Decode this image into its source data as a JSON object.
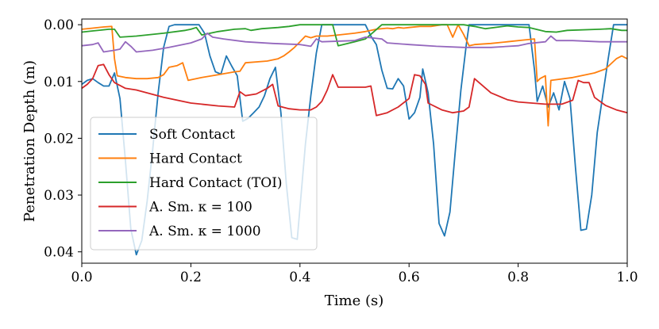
{
  "chart_data": {
    "type": "line",
    "xlabel": "Time (s)",
    "ylabel": "Penetration Depth (m)",
    "xlim": [
      0.0,
      1.0
    ],
    "ylim": [
      0.042,
      -0.001
    ],
    "y_inverted": true,
    "grid": false,
    "legend_position": "lower-left",
    "x_ticks": [
      0.0,
      0.2,
      0.4,
      0.6,
      0.8,
      1.0
    ],
    "x_tick_labels": [
      "0.0",
      "0.2",
      "0.4",
      "0.6",
      "0.8",
      "1.0"
    ],
    "y_ticks": [
      0.0,
      0.01,
      0.02,
      0.03,
      0.04
    ],
    "y_tick_labels": [
      "0.00",
      "0.01",
      "0.02",
      "0.03",
      "0.04"
    ],
    "series": [
      {
        "name": "Soft Contact",
        "color": "#1f77b4",
        "points": [
          [
            0.0,
            0.0105
          ],
          [
            0.01,
            0.0098
          ],
          [
            0.02,
            0.0095
          ],
          [
            0.03,
            0.0102
          ],
          [
            0.04,
            0.0108
          ],
          [
            0.05,
            0.0108
          ],
          [
            0.06,
            0.0085
          ],
          [
            0.07,
            0.013
          ],
          [
            0.08,
            0.024
          ],
          [
            0.09,
            0.036
          ],
          [
            0.1,
            0.0405
          ],
          [
            0.11,
            0.038
          ],
          [
            0.12,
            0.031
          ],
          [
            0.13,
            0.022
          ],
          [
            0.14,
            0.012
          ],
          [
            0.15,
            0.004
          ],
          [
            0.16,
            0.0003
          ],
          [
            0.17,
            0.0
          ],
          [
            0.2,
            0.0
          ],
          [
            0.215,
            0.0
          ],
          [
            0.225,
            0.0015
          ],
          [
            0.235,
            0.0055
          ],
          [
            0.245,
            0.0083
          ],
          [
            0.255,
            0.0087
          ],
          [
            0.265,
            0.0055
          ],
          [
            0.275,
            0.0073
          ],
          [
            0.285,
            0.009
          ],
          [
            0.295,
            0.017
          ],
          [
            0.305,
            0.0165
          ],
          [
            0.315,
            0.0155
          ],
          [
            0.325,
            0.0145
          ],
          [
            0.335,
            0.0125
          ],
          [
            0.345,
            0.0095
          ],
          [
            0.355,
            0.0075
          ],
          [
            0.365,
            0.0155
          ],
          [
            0.375,
            0.028
          ],
          [
            0.385,
            0.0375
          ],
          [
            0.395,
            0.0378
          ],
          [
            0.41,
            0.021
          ],
          [
            0.42,
            0.0125
          ],
          [
            0.43,
            0.005
          ],
          [
            0.44,
            0.0
          ],
          [
            0.52,
            0.0
          ],
          [
            0.53,
            0.002
          ],
          [
            0.54,
            0.0035
          ],
          [
            0.55,
            0.008
          ],
          [
            0.56,
            0.0112
          ],
          [
            0.57,
            0.0113
          ],
          [
            0.58,
            0.0095
          ],
          [
            0.59,
            0.0108
          ],
          [
            0.6,
            0.0166
          ],
          [
            0.61,
            0.0155
          ],
          [
            0.62,
            0.0128
          ],
          [
            0.625,
            0.0078
          ],
          [
            0.635,
            0.012
          ],
          [
            0.645,
            0.021
          ],
          [
            0.655,
            0.035
          ],
          [
            0.665,
            0.0372
          ],
          [
            0.675,
            0.033
          ],
          [
            0.685,
            0.022
          ],
          [
            0.695,
            0.0115
          ],
          [
            0.705,
            0.0035
          ],
          [
            0.71,
            0.0
          ],
          [
            0.8,
            0.0
          ],
          [
            0.82,
            0.0
          ],
          [
            0.83,
            0.008
          ],
          [
            0.835,
            0.0135
          ],
          [
            0.845,
            0.0108
          ],
          [
            0.855,
            0.0145
          ],
          [
            0.865,
            0.012
          ],
          [
            0.875,
            0.015
          ],
          [
            0.885,
            0.01
          ],
          [
            0.895,
            0.013
          ],
          [
            0.905,
            0.025
          ],
          [
            0.915,
            0.0362
          ],
          [
            0.925,
            0.036
          ],
          [
            0.935,
            0.03
          ],
          [
            0.945,
            0.019
          ],
          [
            0.955,
            0.0125
          ],
          [
            0.965,
            0.006
          ],
          [
            0.975,
            0.0
          ],
          [
            0.99,
            0.0
          ],
          [
            1.0,
            0.0
          ]
        ]
      },
      {
        "name": "Hard Contact",
        "color": "#ff7f0e",
        "points": [
          [
            0.0,
            0.0008
          ],
          [
            0.02,
            0.0006
          ],
          [
            0.04,
            0.0004
          ],
          [
            0.055,
            0.0003
          ],
          [
            0.06,
            0.006
          ],
          [
            0.065,
            0.009
          ],
          [
            0.08,
            0.0093
          ],
          [
            0.1,
            0.0095
          ],
          [
            0.12,
            0.0095
          ],
          [
            0.14,
            0.0093
          ],
          [
            0.15,
            0.0088
          ],
          [
            0.16,
            0.0075
          ],
          [
            0.175,
            0.0072
          ],
          [
            0.185,
            0.0067
          ],
          [
            0.195,
            0.0098
          ],
          [
            0.22,
            0.0093
          ],
          [
            0.25,
            0.0088
          ],
          [
            0.28,
            0.0083
          ],
          [
            0.29,
            0.0082
          ],
          [
            0.3,
            0.0067
          ],
          [
            0.34,
            0.0064
          ],
          [
            0.36,
            0.006
          ],
          [
            0.37,
            0.0055
          ],
          [
            0.38,
            0.0048
          ],
          [
            0.39,
            0.004
          ],
          [
            0.4,
            0.003
          ],
          [
            0.41,
            0.002
          ],
          [
            0.42,
            0.0023
          ],
          [
            0.43,
            0.002
          ],
          [
            0.45,
            0.002
          ],
          [
            0.47,
            0.0018
          ],
          [
            0.5,
            0.0015
          ],
          [
            0.52,
            0.0012
          ],
          [
            0.54,
            0.0008
          ],
          [
            0.56,
            0.0006
          ],
          [
            0.57,
            0.0007
          ],
          [
            0.58,
            0.0005
          ],
          [
            0.59,
            0.0006
          ],
          [
            0.6,
            0.0005
          ],
          [
            0.62,
            0.0003
          ],
          [
            0.64,
            0.0003
          ],
          [
            0.66,
            0.0
          ],
          [
            0.67,
            0.0
          ],
          [
            0.68,
            0.0022
          ],
          [
            0.69,
            0.0
          ],
          [
            0.7,
            0.0017
          ],
          [
            0.71,
            0.0037
          ],
          [
            0.72,
            0.0035
          ],
          [
            0.75,
            0.0033
          ],
          [
            0.78,
            0.003
          ],
          [
            0.81,
            0.0027
          ],
          [
            0.83,
            0.0025
          ],
          [
            0.835,
            0.01
          ],
          [
            0.84,
            0.0095
          ],
          [
            0.85,
            0.009
          ],
          [
            0.855,
            0.0178
          ],
          [
            0.86,
            0.0098
          ],
          [
            0.9,
            0.0093
          ],
          [
            0.94,
            0.0085
          ],
          [
            0.96,
            0.0078
          ],
          [
            0.98,
            0.006
          ],
          [
            0.99,
            0.0055
          ],
          [
            1.0,
            0.006
          ]
        ]
      },
      {
        "name": "Hard Contact (TOI)",
        "color": "#2ca02c",
        "points": [
          [
            0.0,
            0.0013
          ],
          [
            0.02,
            0.0011
          ],
          [
            0.05,
            0.0008
          ],
          [
            0.06,
            0.0008
          ],
          [
            0.07,
            0.0022
          ],
          [
            0.1,
            0.002
          ],
          [
            0.15,
            0.0015
          ],
          [
            0.19,
            0.001
          ],
          [
            0.2,
            0.0008
          ],
          [
            0.21,
            0.0005
          ],
          [
            0.22,
            0.0018
          ],
          [
            0.25,
            0.0012
          ],
          [
            0.28,
            0.0008
          ],
          [
            0.3,
            0.0007
          ],
          [
            0.31,
            0.001
          ],
          [
            0.33,
            0.0007
          ],
          [
            0.36,
            0.0005
          ],
          [
            0.38,
            0.0003
          ],
          [
            0.4,
            0.0
          ],
          [
            0.44,
            0.0
          ],
          [
            0.46,
            0.0
          ],
          [
            0.47,
            0.0037
          ],
          [
            0.5,
            0.003
          ],
          [
            0.52,
            0.0025
          ],
          [
            0.53,
            0.0017
          ],
          [
            0.55,
            0.0
          ],
          [
            0.6,
            0.0
          ],
          [
            0.7,
            0.0
          ],
          [
            0.72,
            0.0003
          ],
          [
            0.74,
            0.0007
          ],
          [
            0.78,
            0.0002
          ],
          [
            0.8,
            0.0004
          ],
          [
            0.82,
            0.0005
          ],
          [
            0.85,
            0.0012
          ],
          [
            0.87,
            0.0013
          ],
          [
            0.89,
            0.001
          ],
          [
            0.95,
            0.0008
          ],
          [
            0.97,
            0.0007
          ],
          [
            0.99,
            0.001
          ],
          [
            1.0,
            0.001
          ]
        ]
      },
      {
        "name": "A. Sm. κ = 100",
        "color": "#d62728",
        "points": [
          [
            0.0,
            0.0112
          ],
          [
            0.01,
            0.0105
          ],
          [
            0.02,
            0.0095
          ],
          [
            0.03,
            0.0072
          ],
          [
            0.04,
            0.007
          ],
          [
            0.05,
            0.0088
          ],
          [
            0.06,
            0.0102
          ],
          [
            0.08,
            0.0112
          ],
          [
            0.1,
            0.0115
          ],
          [
            0.15,
            0.0128
          ],
          [
            0.2,
            0.0138
          ],
          [
            0.25,
            0.0143
          ],
          [
            0.28,
            0.0145
          ],
          [
            0.29,
            0.0118
          ],
          [
            0.3,
            0.0125
          ],
          [
            0.32,
            0.0122
          ],
          [
            0.34,
            0.0112
          ],
          [
            0.35,
            0.0105
          ],
          [
            0.36,
            0.0143
          ],
          [
            0.38,
            0.0148
          ],
          [
            0.4,
            0.015
          ],
          [
            0.42,
            0.015
          ],
          [
            0.43,
            0.0145
          ],
          [
            0.44,
            0.0135
          ],
          [
            0.45,
            0.0115
          ],
          [
            0.46,
            0.0088
          ],
          [
            0.47,
            0.011
          ],
          [
            0.5,
            0.011
          ],
          [
            0.52,
            0.011
          ],
          [
            0.53,
            0.0108
          ],
          [
            0.54,
            0.016
          ],
          [
            0.56,
            0.0155
          ],
          [
            0.58,
            0.0145
          ],
          [
            0.6,
            0.013
          ],
          [
            0.61,
            0.0088
          ],
          [
            0.62,
            0.009
          ],
          [
            0.63,
            0.0105
          ],
          [
            0.635,
            0.0138
          ],
          [
            0.66,
            0.015
          ],
          [
            0.68,
            0.0155
          ],
          [
            0.7,
            0.0152
          ],
          [
            0.71,
            0.0145
          ],
          [
            0.72,
            0.0095
          ],
          [
            0.75,
            0.012
          ],
          [
            0.78,
            0.0132
          ],
          [
            0.8,
            0.0136
          ],
          [
            0.85,
            0.014
          ],
          [
            0.88,
            0.014
          ],
          [
            0.9,
            0.0133
          ],
          [
            0.91,
            0.0098
          ],
          [
            0.92,
            0.0102
          ],
          [
            0.93,
            0.0102
          ],
          [
            0.94,
            0.0128
          ],
          [
            0.96,
            0.0142
          ],
          [
            0.98,
            0.015
          ],
          [
            1.0,
            0.0155
          ]
        ]
      },
      {
        "name": "A. Sm. κ = 1000",
        "color": "#9467bd",
        "points": [
          [
            0.0,
            0.0037
          ],
          [
            0.02,
            0.0035
          ],
          [
            0.03,
            0.0032
          ],
          [
            0.04,
            0.0048
          ],
          [
            0.06,
            0.0045
          ],
          [
            0.07,
            0.0043
          ],
          [
            0.08,
            0.003
          ],
          [
            0.09,
            0.0038
          ],
          [
            0.1,
            0.0048
          ],
          [
            0.13,
            0.0045
          ],
          [
            0.16,
            0.004
          ],
          [
            0.2,
            0.0032
          ],
          [
            0.22,
            0.0025
          ],
          [
            0.23,
            0.0015
          ],
          [
            0.24,
            0.0022
          ],
          [
            0.26,
            0.0025
          ],
          [
            0.3,
            0.003
          ],
          [
            0.35,
            0.0033
          ],
          [
            0.4,
            0.0035
          ],
          [
            0.42,
            0.0038
          ],
          [
            0.43,
            0.0025
          ],
          [
            0.44,
            0.003
          ],
          [
            0.5,
            0.0028
          ],
          [
            0.52,
            0.0022
          ],
          [
            0.55,
            0.0025
          ],
          [
            0.56,
            0.0032
          ],
          [
            0.6,
            0.0035
          ],
          [
            0.65,
            0.0038
          ],
          [
            0.7,
            0.004
          ],
          [
            0.75,
            0.004
          ],
          [
            0.8,
            0.0037
          ],
          [
            0.82,
            0.0033
          ],
          [
            0.85,
            0.003
          ],
          [
            0.86,
            0.002
          ],
          [
            0.87,
            0.0028
          ],
          [
            0.9,
            0.0028
          ],
          [
            0.95,
            0.003
          ],
          [
            1.0,
            0.003
          ]
        ]
      }
    ]
  }
}
